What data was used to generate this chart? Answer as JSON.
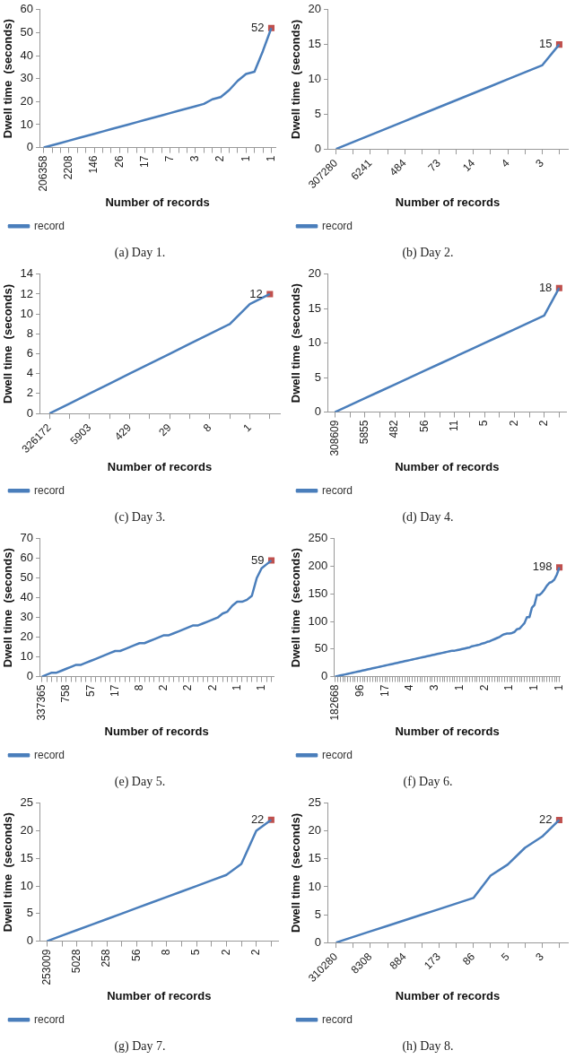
{
  "chart_data": [
    {
      "type": "line",
      "title": "(a) Day 1.",
      "xlabel": "Number of records",
      "ylabel": "Dwell time  (seconds)",
      "grid": false,
      "legend": "bottom left",
      "marker": "none",
      "ylim": [
        0,
        60
      ],
      "yticks": [
        0,
        10,
        20,
        30,
        40,
        50,
        60
      ],
      "categories": [
        "206358",
        null,
        null,
        "2208",
        null,
        null,
        "146",
        null,
        null,
        "26",
        null,
        null,
        "17",
        null,
        null,
        "7",
        null,
        null,
        "3",
        null,
        null,
        "2",
        null,
        null,
        "1",
        null,
        null,
        "1"
      ],
      "series": [
        {
          "name": "record",
          "color": "#4a7ebb",
          "values": [
            0,
            1,
            2,
            3,
            4,
            5,
            6,
            7,
            8,
            9,
            10,
            11,
            12,
            13,
            14,
            15,
            16,
            17,
            18,
            19,
            21,
            22,
            25,
            29,
            32,
            33,
            42,
            52
          ]
        },
        {
          "type": "scatter",
          "marker": "square",
          "color": "#c0504d",
          "values": [
            null,
            null,
            null,
            null,
            null,
            null,
            null,
            null,
            null,
            null,
            null,
            null,
            null,
            null,
            null,
            null,
            null,
            null,
            null,
            null,
            null,
            null,
            null,
            null,
            null,
            null,
            null,
            52
          ],
          "value_labels": [
            null,
            null,
            null,
            null,
            null,
            null,
            null,
            null,
            null,
            null,
            null,
            null,
            null,
            null,
            null,
            null,
            null,
            null,
            null,
            null,
            null,
            null,
            null,
            null,
            null,
            null,
            null,
            "52"
          ]
        }
      ]
    },
    {
      "type": "line",
      "title": "(b) Day 2.",
      "xlabel": "Number of records",
      "ylabel": "Dwell time  (seconds)",
      "grid": false,
      "legend": "bottom left",
      "marker": "none",
      "ylim": [
        0,
        20
      ],
      "yticks": [
        0,
        5,
        10,
        15,
        20
      ],
      "categories": [
        "307280",
        null,
        "6241",
        null,
        "484",
        null,
        "73",
        null,
        "14",
        null,
        "4",
        null,
        "3",
        null
      ],
      "series": [
        {
          "name": "record",
          "color": "#4a7ebb",
          "values": [
            0,
            1,
            2,
            3,
            4,
            5,
            6,
            7,
            8,
            9,
            10,
            11,
            12,
            15
          ]
        },
        {
          "type": "scatter",
          "marker": "square",
          "color": "#c0504d",
          "values": [
            null,
            null,
            null,
            null,
            null,
            null,
            null,
            null,
            null,
            null,
            null,
            null,
            null,
            15
          ],
          "value_labels": [
            null,
            null,
            null,
            null,
            null,
            null,
            null,
            null,
            null,
            null,
            null,
            null,
            null,
            "15"
          ]
        }
      ]
    },
    {
      "type": "line",
      "title": "(c) Day 3.",
      "xlabel": "Number of records",
      "ylabel": "Dwell time  (seconds)",
      "grid": false,
      "legend": "bottom left",
      "marker": "none",
      "ylim": [
        0,
        14
      ],
      "yticks": [
        0,
        2,
        4,
        6,
        8,
        10,
        12,
        14
      ],
      "categories": [
        "326172",
        null,
        "5903",
        null,
        "429",
        null,
        "29",
        null,
        "8",
        null,
        "1",
        null
      ],
      "series": [
        {
          "name": "record",
          "color": "#4a7ebb",
          "values": [
            0,
            1,
            2,
            3,
            4,
            5,
            6,
            7,
            8,
            9,
            11,
            12
          ]
        },
        {
          "type": "scatter",
          "marker": "square",
          "color": "#c0504d",
          "values": [
            null,
            null,
            null,
            null,
            null,
            null,
            null,
            null,
            null,
            null,
            null,
            12
          ],
          "value_labels": [
            null,
            null,
            null,
            null,
            null,
            null,
            null,
            null,
            null,
            null,
            null,
            "12"
          ]
        }
      ]
    },
    {
      "type": "line",
      "title": "(d) Day 4.",
      "xlabel": "Number of records",
      "ylabel": "Dwell time  (seconds)",
      "grid": false,
      "legend": "bottom left",
      "marker": "none",
      "ylim": [
        0,
        20
      ],
      "yticks": [
        0,
        5,
        10,
        15,
        20
      ],
      "categories": [
        "308609",
        null,
        "5855",
        null,
        "482",
        null,
        "56",
        null,
        "11",
        null,
        "5",
        null,
        "2",
        null,
        "2",
        null
      ],
      "series": [
        {
          "name": "record",
          "color": "#4a7ebb",
          "values": [
            0,
            1,
            2,
            3,
            4,
            5,
            6,
            7,
            8,
            9,
            10,
            11,
            12,
            13,
            14,
            18
          ]
        },
        {
          "type": "scatter",
          "marker": "square",
          "color": "#c0504d",
          "values": [
            null,
            null,
            null,
            null,
            null,
            null,
            null,
            null,
            null,
            null,
            null,
            null,
            null,
            null,
            null,
            18
          ],
          "value_labels": [
            null,
            null,
            null,
            null,
            null,
            null,
            null,
            null,
            null,
            null,
            null,
            null,
            null,
            null,
            null,
            "18"
          ]
        }
      ]
    },
    {
      "type": "line",
      "title": "(e) Day 5.",
      "xlabel": "Number of records",
      "ylabel": "Dwell time  (seconds)",
      "grid": false,
      "legend": "bottom left",
      "marker": "none",
      "ylim": [
        0,
        70
      ],
      "yticks": [
        0,
        10,
        20,
        30,
        40,
        50,
        60,
        70
      ],
      "categories": [
        "337365",
        null,
        null,
        null,
        null,
        "758",
        null,
        null,
        null,
        null,
        "57",
        null,
        null,
        null,
        null,
        "17",
        null,
        null,
        null,
        null,
        "8",
        null,
        null,
        null,
        null,
        "2",
        null,
        null,
        null,
        null,
        "2",
        null,
        null,
        null,
        null,
        "2",
        null,
        null,
        null,
        null,
        "1",
        null,
        null,
        null,
        null,
        "1",
        null,
        null
      ],
      "series": [
        {
          "name": "record",
          "color": "#4a7ebb",
          "values": [
            0,
            1,
            2,
            2,
            3,
            4,
            5,
            6,
            6,
            7,
            8,
            9,
            10,
            11,
            12,
            13,
            13,
            14,
            15,
            16,
            17,
            17,
            18,
            19,
            20,
            21,
            21,
            22,
            23,
            24,
            25,
            26,
            26,
            27,
            28,
            29,
            30,
            32,
            33,
            36,
            38,
            38,
            39,
            41,
            50,
            55,
            57,
            59
          ]
        },
        {
          "type": "scatter",
          "marker": "square",
          "color": "#c0504d",
          "values": [
            null,
            null,
            null,
            null,
            null,
            null,
            null,
            null,
            null,
            null,
            null,
            null,
            null,
            null,
            null,
            null,
            null,
            null,
            null,
            null,
            null,
            null,
            null,
            null,
            null,
            null,
            null,
            null,
            null,
            null,
            null,
            null,
            null,
            null,
            null,
            null,
            null,
            null,
            null,
            null,
            null,
            null,
            null,
            null,
            null,
            null,
            null,
            59
          ],
          "value_labels": [
            null,
            null,
            null,
            null,
            null,
            null,
            null,
            null,
            null,
            null,
            null,
            null,
            null,
            null,
            null,
            null,
            null,
            null,
            null,
            null,
            null,
            null,
            null,
            null,
            null,
            null,
            null,
            null,
            null,
            null,
            null,
            null,
            null,
            null,
            null,
            null,
            null,
            null,
            null,
            null,
            null,
            null,
            null,
            null,
            null,
            null,
            null,
            "59"
          ]
        }
      ]
    },
    {
      "type": "line",
      "title": "(f) Day 6.",
      "xlabel": "Number of records",
      "ylabel": "Dwell time  (seconds)",
      "grid": false,
      "legend": "bottom left",
      "marker": "none",
      "ylim": [
        0,
        250
      ],
      "yticks": [
        0,
        50,
        100,
        150,
        200,
        250
      ],
      "categories": [
        "182668",
        null,
        null,
        null,
        null,
        null,
        null,
        null,
        null,
        null,
        "96",
        null,
        null,
        null,
        null,
        null,
        null,
        null,
        null,
        null,
        "17",
        null,
        null,
        null,
        null,
        null,
        null,
        null,
        null,
        null,
        "4",
        null,
        null,
        null,
        null,
        null,
        null,
        null,
        null,
        null,
        "3",
        null,
        null,
        null,
        null,
        null,
        null,
        null,
        null,
        null,
        "1",
        null,
        null,
        null,
        null,
        null,
        null,
        null,
        null,
        null,
        "2",
        null,
        null,
        null,
        null,
        null,
        null,
        null,
        null,
        null,
        "1",
        null,
        null,
        null,
        null,
        null,
        null,
        null,
        null,
        null,
        "1",
        null,
        null,
        null,
        null,
        null,
        null,
        null,
        null,
        null,
        "1"
      ],
      "series": [
        {
          "name": "record",
          "color": "#4a7ebb",
          "values": [
            0,
            1,
            2,
            3,
            4,
            5,
            6,
            7,
            8,
            9,
            10,
            11,
            12,
            13,
            14,
            15,
            16,
            17,
            18,
            19,
            20,
            21,
            22,
            23,
            24,
            25,
            26,
            27,
            28,
            29,
            30,
            31,
            32,
            33,
            34,
            35,
            36,
            37,
            38,
            39,
            40,
            41,
            42,
            43,
            44,
            45,
            46,
            47,
            47,
            48,
            49,
            50,
            51,
            52,
            53,
            55,
            56,
            57,
            58,
            60,
            61,
            63,
            64,
            66,
            68,
            70,
            72,
            75,
            77,
            78,
            78,
            79,
            81,
            86,
            87,
            92,
            97,
            108,
            108,
            125,
            130,
            148,
            148,
            152,
            158,
            165,
            170,
            172,
            176,
            185,
            198
          ]
        },
        {
          "type": "scatter",
          "marker": "square",
          "color": "#c0504d",
          "values": [
            null,
            null,
            null,
            null,
            null,
            null,
            null,
            null,
            null,
            null,
            null,
            null,
            null,
            null,
            null,
            null,
            null,
            null,
            null,
            null,
            null,
            null,
            null,
            null,
            null,
            null,
            null,
            null,
            null,
            null,
            null,
            null,
            null,
            null,
            null,
            null,
            null,
            null,
            null,
            null,
            null,
            null,
            null,
            null,
            null,
            null,
            null,
            null,
            null,
            null,
            null,
            null,
            null,
            null,
            null,
            null,
            null,
            null,
            null,
            null,
            null,
            null,
            null,
            null,
            null,
            null,
            null,
            null,
            null,
            null,
            null,
            null,
            null,
            null,
            null,
            null,
            null,
            null,
            null,
            null,
            null,
            null,
            null,
            null,
            null,
            null,
            null,
            null,
            null,
            null,
            198
          ],
          "value_labels": [
            null,
            null,
            null,
            null,
            null,
            null,
            null,
            null,
            null,
            null,
            null,
            null,
            null,
            null,
            null,
            null,
            null,
            null,
            null,
            null,
            null,
            null,
            null,
            null,
            null,
            null,
            null,
            null,
            null,
            null,
            null,
            null,
            null,
            null,
            null,
            null,
            null,
            null,
            null,
            null,
            null,
            null,
            null,
            null,
            null,
            null,
            null,
            null,
            null,
            null,
            null,
            null,
            null,
            null,
            null,
            null,
            null,
            null,
            null,
            null,
            null,
            null,
            null,
            null,
            null,
            null,
            null,
            null,
            null,
            null,
            null,
            null,
            null,
            null,
            null,
            null,
            null,
            null,
            null,
            null,
            null,
            null,
            null,
            null,
            null,
            null,
            null,
            null,
            null,
            null,
            "198"
          ]
        }
      ]
    },
    {
      "type": "line",
      "title": "(g) Day 7.",
      "xlabel": "Number of records",
      "ylabel": "Dwell time  (seconds)",
      "grid": false,
      "legend": "bottom left",
      "marker": "none",
      "ylim": [
        0,
        25
      ],
      "yticks": [
        0,
        5,
        10,
        15,
        20,
        25
      ],
      "categories": [
        "253009",
        null,
        "5028",
        null,
        "258",
        null,
        "56",
        null,
        "8",
        null,
        "5",
        null,
        "2",
        null,
        "2",
        null
      ],
      "series": [
        {
          "name": "record",
          "color": "#4a7ebb",
          "values": [
            0,
            1,
            2,
            3,
            4,
            5,
            6,
            7,
            8,
            9,
            10,
            11,
            12,
            14,
            20,
            22
          ]
        },
        {
          "type": "scatter",
          "marker": "square",
          "color": "#c0504d",
          "values": [
            null,
            null,
            null,
            null,
            null,
            null,
            null,
            null,
            null,
            null,
            null,
            null,
            null,
            null,
            null,
            22
          ],
          "value_labels": [
            null,
            null,
            null,
            null,
            null,
            null,
            null,
            null,
            null,
            null,
            null,
            null,
            null,
            null,
            null,
            "22"
          ]
        }
      ]
    },
    {
      "type": "line",
      "title": "(h) Day 8.",
      "xlabel": "Number of records",
      "ylabel": "Dwell time  (seconds)",
      "grid": false,
      "legend": "bottom left",
      "marker": "none",
      "ylim": [
        0,
        25
      ],
      "yticks": [
        0,
        5,
        10,
        15,
        20,
        25
      ],
      "categories": [
        "310280",
        null,
        "8308",
        null,
        "884",
        null,
        "173",
        null,
        "86",
        null,
        "5",
        null,
        "3",
        null
      ],
      "series": [
        {
          "name": "record",
          "color": "#4a7ebb",
          "values": [
            0,
            1,
            2,
            3,
            4,
            5,
            6,
            7,
            8,
            12,
            14,
            17,
            19,
            22
          ]
        },
        {
          "type": "scatter",
          "marker": "square",
          "color": "#c0504d",
          "values": [
            null,
            null,
            null,
            null,
            null,
            null,
            null,
            null,
            null,
            null,
            null,
            null,
            null,
            22
          ],
          "value_labels": [
            null,
            null,
            null,
            null,
            null,
            null,
            null,
            null,
            null,
            null,
            null,
            null,
            null,
            "22"
          ]
        }
      ]
    }
  ]
}
